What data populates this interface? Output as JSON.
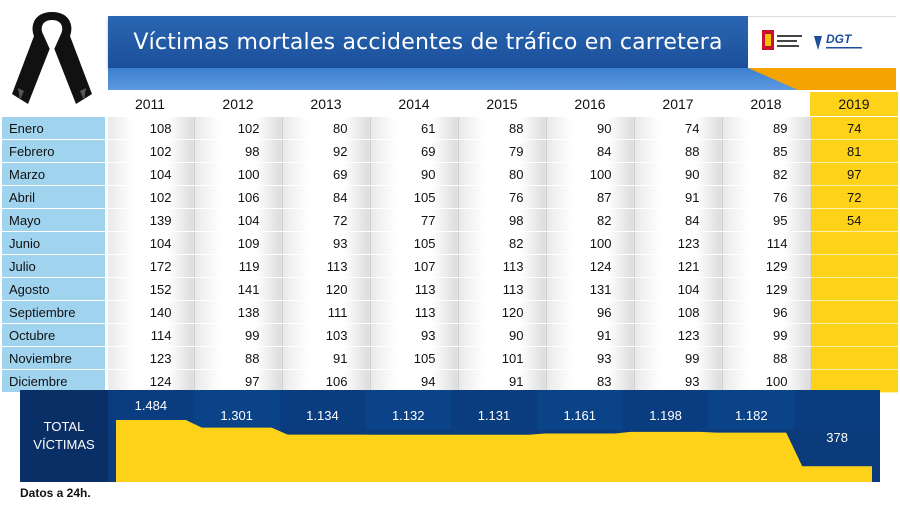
{
  "header": {
    "title": "Víctimas mortales accidentes de tráfico en carretera"
  },
  "logos": {
    "gov": "gobierno-espana-logo",
    "dgt": "DGT"
  },
  "chart_data": {
    "type": "table",
    "title": "Víctimas mortales accidentes de tráfico en carretera",
    "years": [
      "2011",
      "2012",
      "2013",
      "2014",
      "2015",
      "2016",
      "2017",
      "2018",
      "2019"
    ],
    "months": [
      "Enero",
      "Febrero",
      "Marzo",
      "Abril",
      "Mayo",
      "Junio",
      "Julio",
      "Agosto",
      "Septiembre",
      "Octubre",
      "Noviembre",
      "Diciembre"
    ],
    "values": [
      [
        "108",
        "102",
        "80",
        "61",
        "88",
        "90",
        "74",
        "89",
        "74"
      ],
      [
        "102",
        "98",
        "92",
        "69",
        "79",
        "84",
        "88",
        "85",
        "81"
      ],
      [
        "104",
        "100",
        "69",
        "90",
        "80",
        "100",
        "90",
        "82",
        "97"
      ],
      [
        "102",
        "106",
        "84",
        "105",
        "76",
        "87",
        "91",
        "76",
        "72"
      ],
      [
        "139",
        "104",
        "72",
        "77",
        "98",
        "82",
        "84",
        "95",
        "54"
      ],
      [
        "104",
        "109",
        "93",
        "105",
        "82",
        "100",
        "123",
        "114",
        ""
      ],
      [
        "172",
        "119",
        "113",
        "107",
        "113",
        "124",
        "121",
        "129",
        ""
      ],
      [
        "152",
        "141",
        "120",
        "113",
        "113",
        "131",
        "104",
        "129",
        ""
      ],
      [
        "140",
        "138",
        "111",
        "113",
        "120",
        "96",
        "108",
        "96",
        ""
      ],
      [
        "114",
        "99",
        "103",
        "93",
        "90",
        "91",
        "123",
        "99",
        ""
      ],
      [
        "123",
        "88",
        "91",
        "105",
        "101",
        "93",
        "99",
        "88",
        ""
      ],
      [
        "124",
        "97",
        "106",
        "94",
        "91",
        "83",
        "93",
        "100",
        ""
      ]
    ],
    "totals_label": "TOTAL VÍCTIMAS",
    "totals": [
      "1.484",
      "1.301",
      "1.134",
      "1.132",
      "1.131",
      "1.161",
      "1.198",
      "1.182",
      "378"
    ],
    "totals_numeric": [
      1484,
      1301,
      1134,
      1132,
      1131,
      1161,
      1198,
      1182,
      378
    ],
    "colors": {
      "highlight": "#ffd21a",
      "navy": "#0b3b7a",
      "header_blue": "#1b4f9a",
      "month_bg": "#9fd3ee"
    }
  },
  "footnote": "Datos a 24h."
}
